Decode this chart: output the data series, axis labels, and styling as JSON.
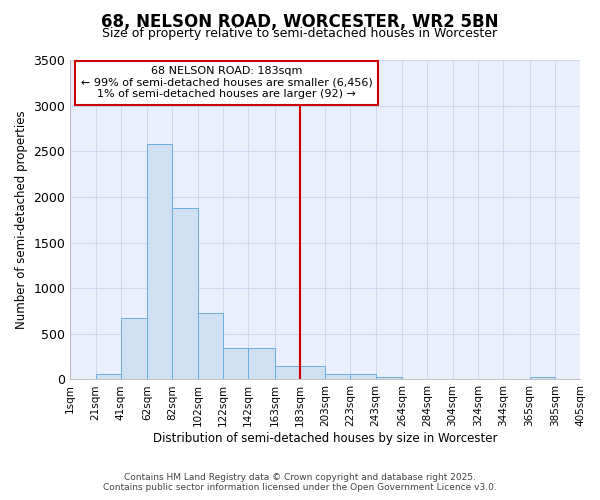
{
  "title_line1": "68, NELSON ROAD, WORCESTER, WR2 5BN",
  "title_line2": "Size of property relative to semi-detached houses in Worcester",
  "xlabel": "Distribution of semi-detached houses by size in Worcester",
  "ylabel": "Number of semi-detached properties",
  "annotation_title": "68 NELSON ROAD: 183sqm",
  "annotation_line1": "← 99% of semi-detached houses are smaller (6,456)",
  "annotation_line2": "1% of semi-detached houses are larger (92) →",
  "property_size": 183,
  "bar_counts": [
    0,
    55,
    670,
    2580,
    1880,
    730,
    340,
    340,
    150,
    150,
    65,
    55,
    30,
    5,
    0,
    0,
    0,
    0,
    25,
    0
  ],
  "bin_edges": [
    1,
    21,
    41,
    62,
    82,
    102,
    122,
    142,
    163,
    183,
    203,
    223,
    243,
    264,
    284,
    304,
    324,
    344,
    365,
    385,
    405
  ],
  "bar_color": "#cfe0f3",
  "bar_edge_color": "#6aaee0",
  "vline_color": "#cc0000",
  "annotation_box_color": "#cc0000",
  "background_color": "#eaf0fb",
  "grid_color": "#d0d8ef",
  "footer_line1": "Contains HM Land Registry data © Crown copyright and database right 2025.",
  "footer_line2": "Contains public sector information licensed under the Open Government Licence v3.0.",
  "ylim": [
    0,
    3500
  ],
  "yticks": [
    0,
    500,
    1000,
    1500,
    2000,
    2500,
    3000,
    3500
  ]
}
